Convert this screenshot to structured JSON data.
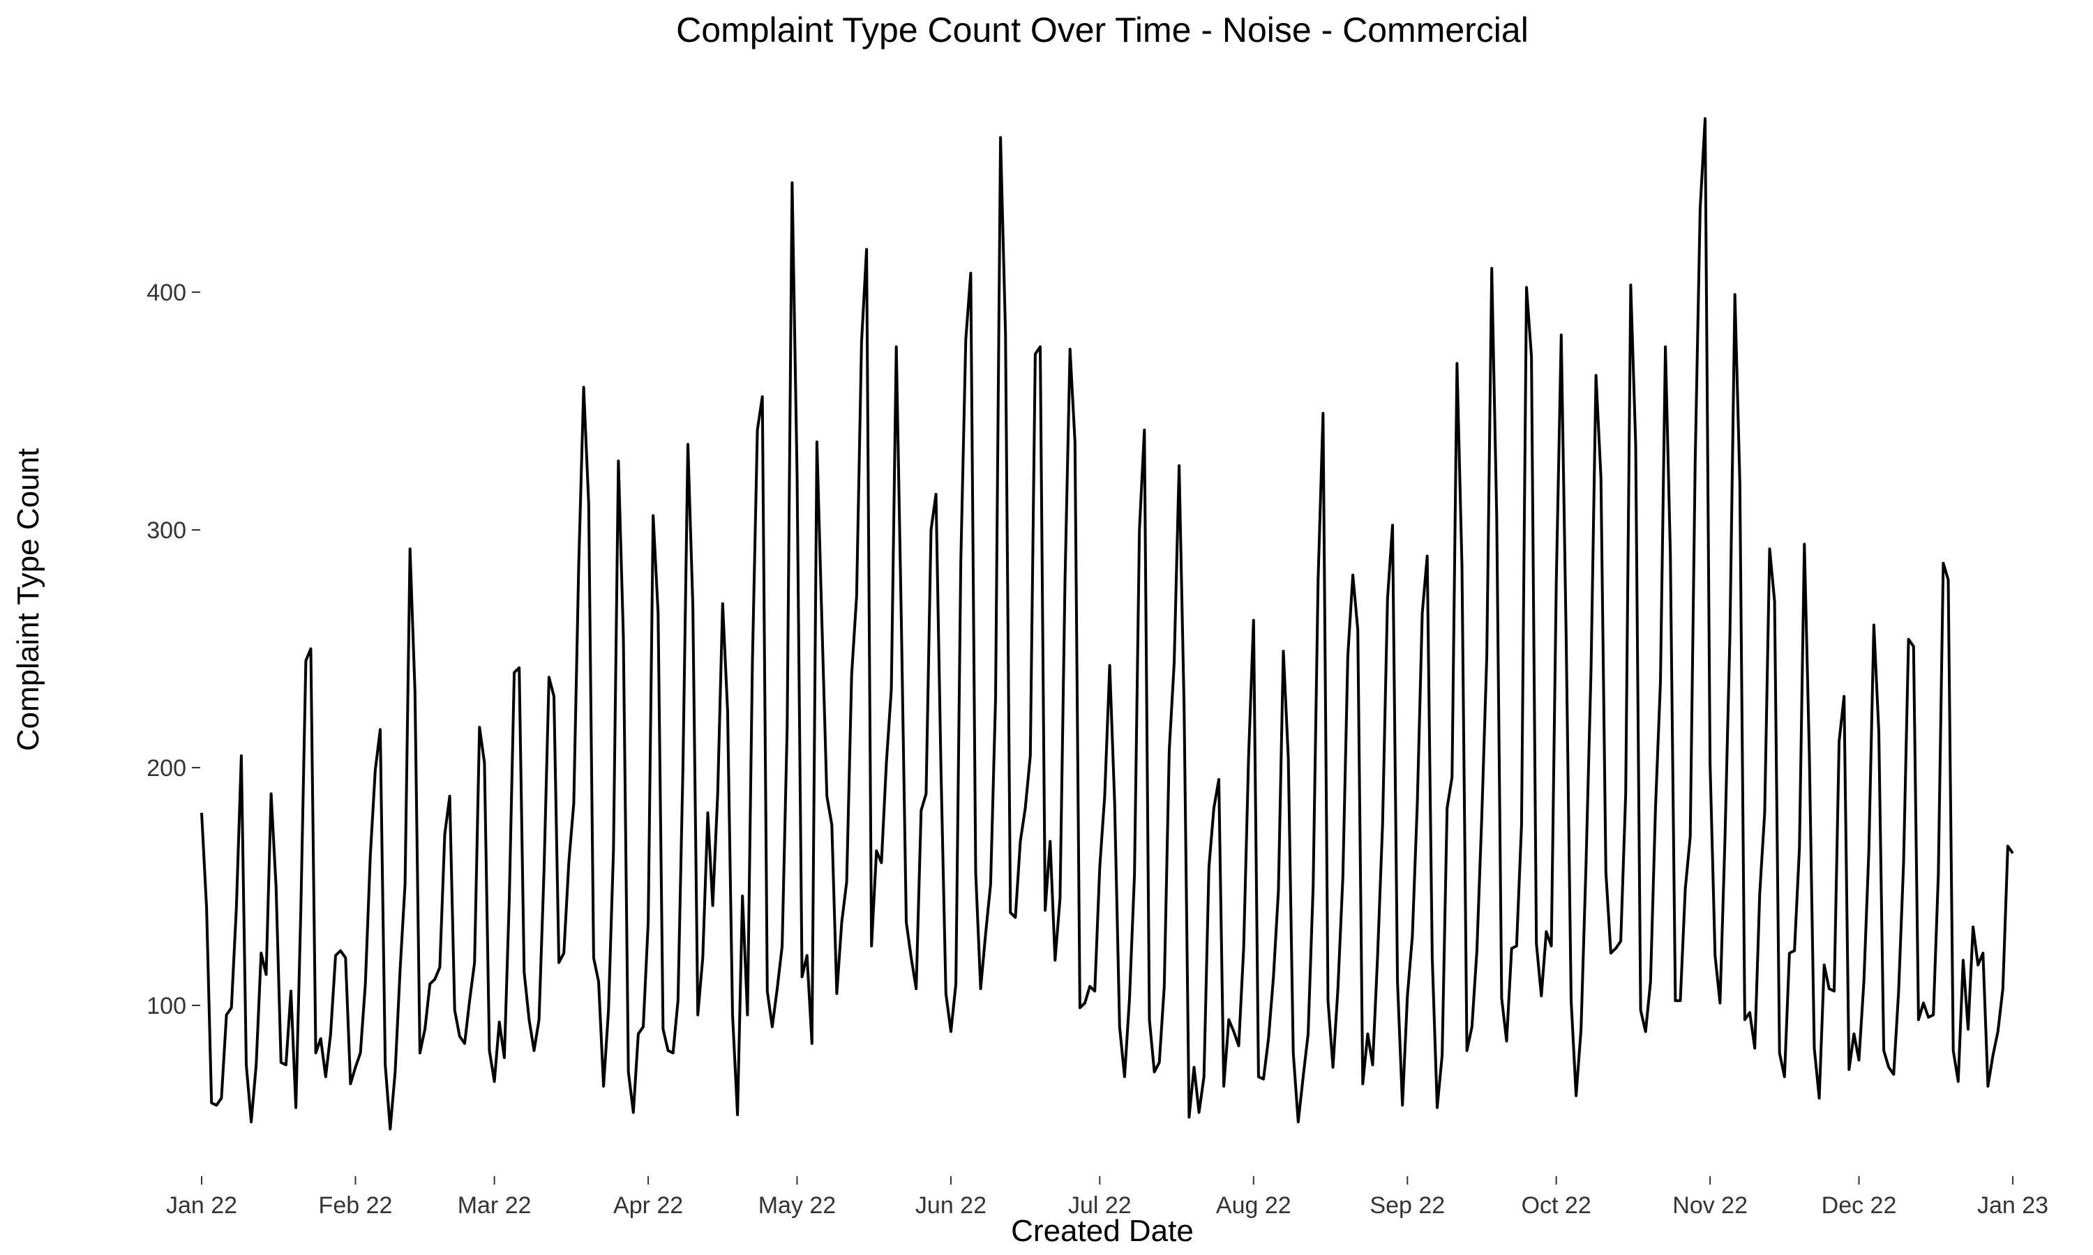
{
  "chart_data": {
    "type": "line",
    "title": "Complaint Type Count Over Time - Noise - Commercial",
    "xlabel": "Created Date",
    "ylabel": "Complaint Type Count",
    "x_start": "2022-01-01",
    "xlim": [
      "2022-01-01",
      "2023-01-01"
    ],
    "ylim": [
      30,
      480
    ],
    "grid": false,
    "legend": "none",
    "x_ticks": [
      {
        "label": "Jan 22",
        "date": "2022-01-01"
      },
      {
        "label": "Feb 22",
        "date": "2022-02-01"
      },
      {
        "label": "Mar 22",
        "date": "2022-03-01"
      },
      {
        "label": "Apr 22",
        "date": "2022-04-01"
      },
      {
        "label": "May 22",
        "date": "2022-05-01"
      },
      {
        "label": "Jun 22",
        "date": "2022-06-01"
      },
      {
        "label": "Jul 22",
        "date": "2022-07-01"
      },
      {
        "label": "Aug 22",
        "date": "2022-08-01"
      },
      {
        "label": "Sep 22",
        "date": "2022-09-01"
      },
      {
        "label": "Oct 22",
        "date": "2022-10-01"
      },
      {
        "label": "Nov 22",
        "date": "2022-11-01"
      },
      {
        "label": "Dec 22",
        "date": "2022-12-01"
      },
      {
        "label": "Jan 23",
        "date": "2023-01-01"
      }
    ],
    "y_ticks": [
      100,
      200,
      300,
      400
    ],
    "series": [
      {
        "color": "#000000",
        "values": [
          181,
          141,
          59,
          58,
          61,
          96,
          99,
          141,
          205,
          75,
          51,
          75,
          122,
          113,
          189,
          150,
          76,
          75,
          106,
          57,
          140,
          245,
          250,
          80,
          86,
          70,
          88,
          121,
          123,
          120,
          67,
          74,
          80,
          109,
          163,
          199,
          216,
          75,
          48,
          72,
          115,
          151,
          292,
          232,
          80,
          90,
          109,
          111,
          116,
          172,
          188,
          98,
          87,
          84,
          102,
          118,
          217,
          202,
          81,
          68,
          93,
          78,
          145,
          240,
          242,
          114,
          94,
          81,
          94,
          157,
          238,
          230,
          118,
          122,
          160,
          185,
          285,
          360,
          311,
          120,
          110,
          66,
          98,
          165,
          329,
          255,
          72,
          55,
          88,
          91,
          135,
          306,
          265,
          90,
          81,
          80,
          102,
          200,
          336,
          268,
          96,
          120,
          181,
          142,
          189,
          269,
          224,
          96,
          54,
          146,
          96,
          245,
          342,
          356,
          106,
          91,
          107,
          125,
          217,
          446,
          323,
          112,
          121,
          84,
          337,
          262,
          188,
          176,
          105,
          135,
          152,
          239,
          272,
          379,
          418,
          125,
          165,
          160,
          202,
          233,
          377,
          264,
          135,
          120,
          107,
          182,
          189,
          300,
          315,
          200,
          105,
          89,
          109,
          287,
          380,
          408,
          156,
          107,
          130,
          151,
          229,
          465,
          383,
          139,
          137,
          169,
          183,
          205,
          374,
          377,
          140,
          169,
          119,
          145,
          278,
          376,
          337,
          99,
          101,
          108,
          106,
          158,
          188,
          243,
          185,
          91,
          70,
          103,
          155,
          300,
          342,
          94,
          72,
          76,
          108,
          207,
          244,
          327,
          226,
          53,
          74,
          55,
          70,
          158,
          183,
          195,
          66,
          94,
          89,
          83,
          124,
          205,
          262,
          70,
          69,
          86,
          112,
          148,
          249,
          204,
          80,
          51,
          70,
          88,
          150,
          279,
          349,
          102,
          74,
          107,
          154,
          247,
          281,
          258,
          67,
          88,
          75,
          121,
          176,
          271,
          302,
          110,
          58,
          104,
          129,
          185,
          265,
          289,
          120,
          57,
          79,
          183,
          196,
          370,
          285,
          81,
          91,
          123,
          180,
          247,
          410,
          306,
          103,
          85,
          124,
          125,
          176,
          402,
          373,
          126,
          104,
          131,
          125,
          278,
          382,
          254,
          102,
          62,
          90,
          159,
          241,
          365,
          322,
          156,
          122,
          124,
          127,
          189,
          403,
          336,
          98,
          89,
          110,
          183,
          236,
          377,
          290,
          102,
          102,
          149,
          171,
          329,
          435,
          473,
          202,
          121,
          101,
          170,
          256,
          399,
          320,
          94,
          97,
          82,
          147,
          181,
          292,
          270,
          80,
          70,
          122,
          123,
          166,
          294,
          206,
          82,
          61,
          117,
          107,
          106,
          211,
          230,
          73,
          88,
          77,
          110,
          165,
          260,
          215,
          81,
          74,
          71,
          106,
          160,
          254,
          251,
          94,
          101,
          95,
          96,
          155,
          286,
          279,
          81,
          68,
          119,
          90,
          133,
          117,
          122,
          66,
          79,
          89,
          107,
          167,
          164
        ]
      }
    ]
  }
}
